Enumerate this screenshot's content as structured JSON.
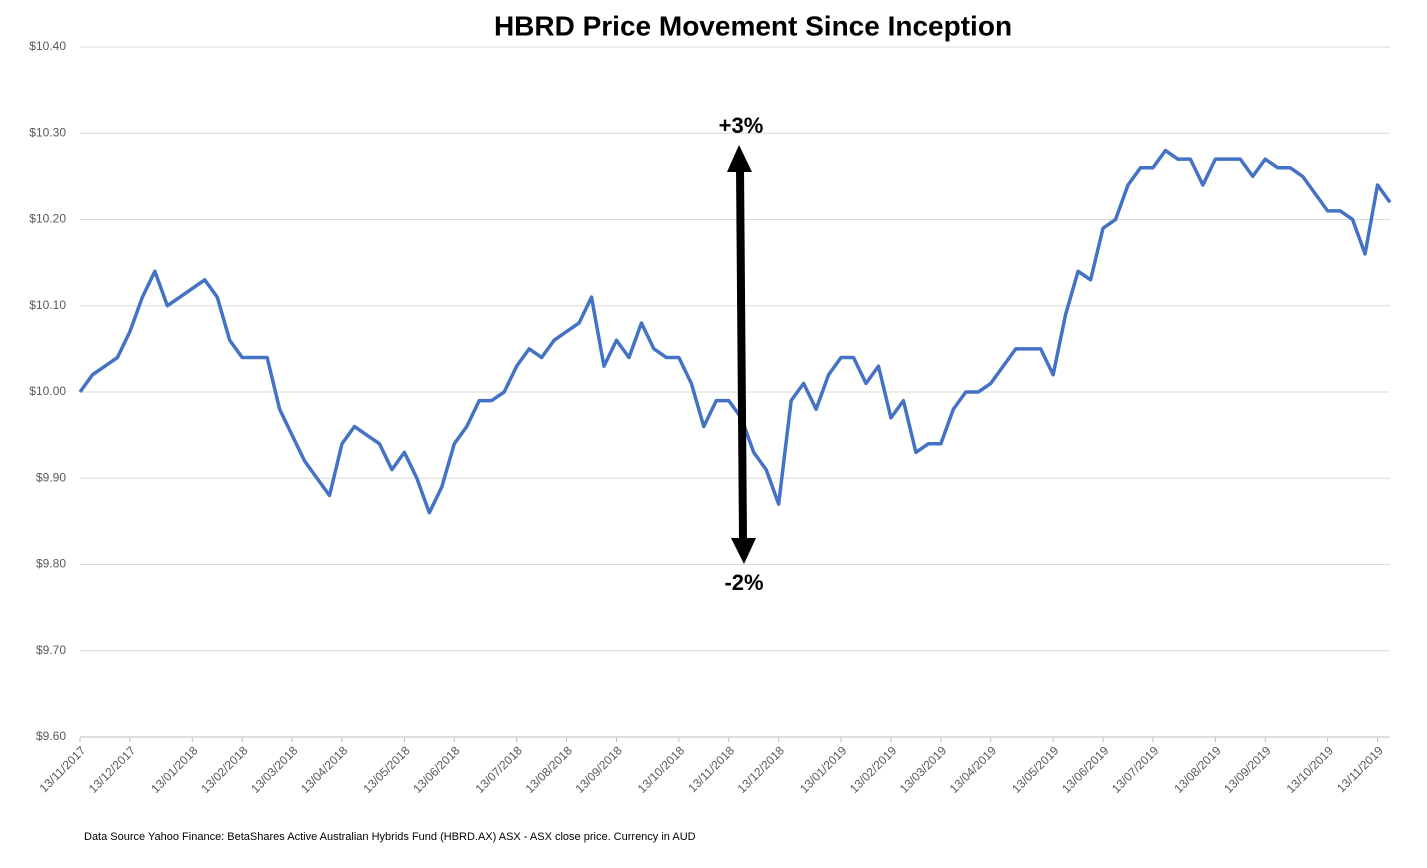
{
  "chart_data": {
    "type": "line",
    "title": "HBRD Price Movement Since Inception",
    "annotations": [
      "+3%",
      "-2%"
    ],
    "footnote": "Data Source Yahoo Finance: BetaShares Active Australian Hybrids Fund (HBRD.AX) ASX - ASX close price. Currency in AUD",
    "categories": [
      "13/11/2017",
      null,
      null,
      null,
      "13/12/2017",
      null,
      null,
      null,
      null,
      "13/01/2018",
      null,
      null,
      null,
      "13/02/2018",
      null,
      null,
      null,
      "13/03/2018",
      null,
      null,
      null,
      "13/04/2018",
      null,
      null,
      null,
      null,
      "13/05/2018",
      null,
      null,
      null,
      "13/06/2018",
      null,
      null,
      null,
      null,
      "13/07/2018",
      null,
      null,
      null,
      "13/08/2018",
      null,
      null,
      null,
      "13/09/2018",
      null,
      null,
      null,
      null,
      "13/10/2018",
      null,
      null,
      null,
      "13/11/2018",
      null,
      null,
      null,
      "13/12/2018",
      null,
      null,
      null,
      null,
      "13/01/2019",
      null,
      null,
      null,
      "13/02/2019",
      null,
      null,
      null,
      "13/03/2019",
      null,
      null,
      null,
      "13/04/2019",
      null,
      null,
      null,
      null,
      "13/05/2019",
      null,
      null,
      null,
      "13/06/2019",
      null,
      null,
      null,
      "13/07/2019",
      null,
      null,
      null,
      null,
      "13/08/2019",
      null,
      null,
      null,
      "13/09/2019",
      null,
      null,
      null,
      null,
      "13/10/2019",
      null,
      null,
      null,
      "13/11/2019",
      null
    ],
    "series": [
      {
        "name": "HBRD",
        "color": "#4472c4",
        "values": [
          10.0,
          10.02,
          10.03,
          10.04,
          10.07,
          10.11,
          10.14,
          10.1,
          10.11,
          10.12,
          10.13,
          10.11,
          10.06,
          10.04,
          10.04,
          10.04,
          9.98,
          9.95,
          9.92,
          9.9,
          9.88,
          9.94,
          9.96,
          9.95,
          9.94,
          9.91,
          9.93,
          9.9,
          9.86,
          9.89,
          9.94,
          9.96,
          9.99,
          9.99,
          10.0,
          10.03,
          10.05,
          10.04,
          10.06,
          10.07,
          10.08,
          10.11,
          10.03,
          10.06,
          10.04,
          10.08,
          10.05,
          10.04,
          10.04,
          10.01,
          9.96,
          9.99,
          9.99,
          9.97,
          9.93,
          9.91,
          9.87,
          9.99,
          10.01,
          9.98,
          10.02,
          10.04,
          10.04,
          10.01,
          10.03,
          9.97,
          9.99,
          9.93,
          9.94,
          9.94,
          9.98,
          10.0,
          10.0,
          10.01,
          10.03,
          10.05,
          10.05,
          10.05,
          10.02,
          10.09,
          10.14,
          10.13,
          10.19,
          10.2,
          10.24,
          10.26,
          10.26,
          10.28,
          10.27,
          10.27,
          10.24,
          10.27,
          10.27,
          10.27,
          10.25,
          10.27,
          10.26,
          10.26,
          10.25,
          10.23,
          10.21,
          10.21,
          10.2,
          10.16,
          10.24,
          10.22
        ]
      }
    ],
    "ylim": [
      9.6,
      10.4
    ],
    "yticks": [
      {
        "value": 9.6,
        "label": "$9.60"
      },
      {
        "value": 9.7,
        "label": "$9.70"
      },
      {
        "value": 9.8,
        "label": "$9.80"
      },
      {
        "value": 9.9,
        "label": "$9.90"
      },
      {
        "value": 10.0,
        "label": "$10.00"
      },
      {
        "value": 10.1,
        "label": "$10.10"
      },
      {
        "value": 10.2,
        "label": "$10.20"
      },
      {
        "value": 10.3,
        "label": "$10.30"
      },
      {
        "value": 10.4,
        "label": "$10.40"
      }
    ],
    "grid": true
  }
}
